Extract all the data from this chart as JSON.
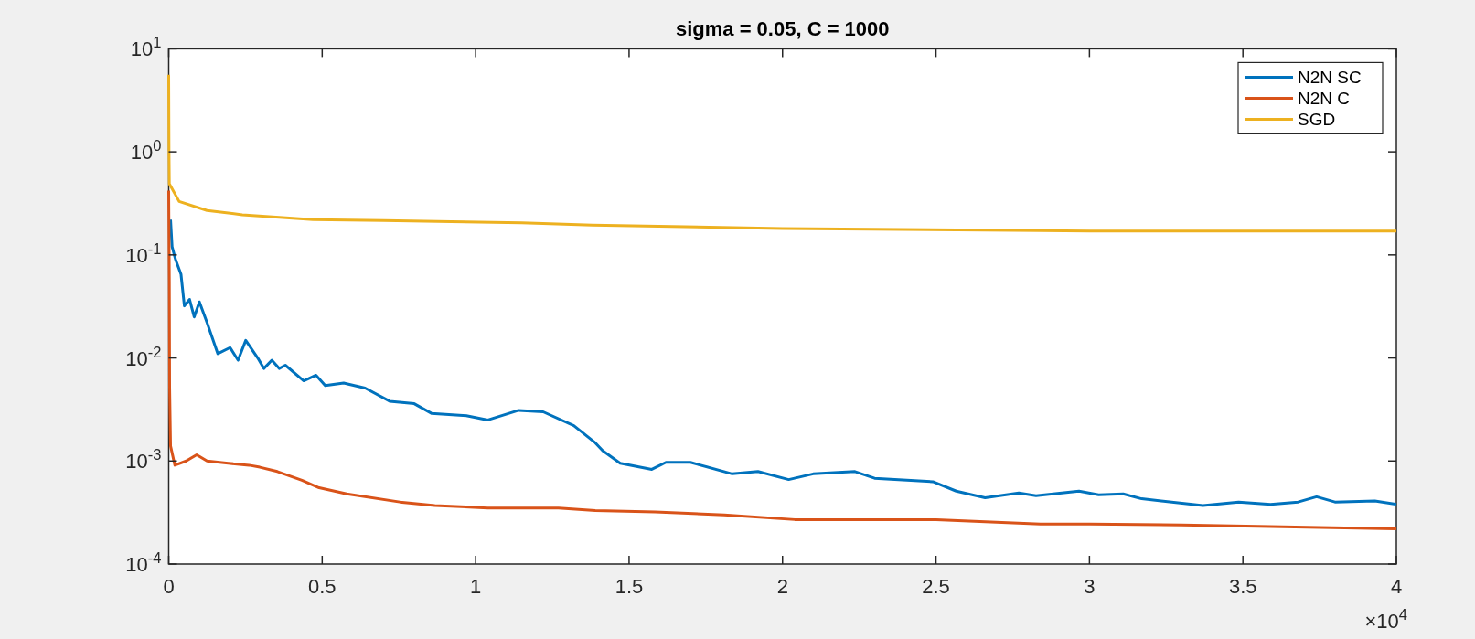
{
  "chart_data": {
    "type": "line",
    "title": "sigma = 0.05, C = 1000",
    "log": "y",
    "grid": false,
    "legend": "top right",
    "xlim": [
      0,
      4
    ],
    "xticks": [
      0,
      0.5,
      1,
      1.5,
      2,
      2.5,
      3,
      3.5,
      4
    ],
    "ylim": [
      0.0001,
      10
    ],
    "yticks": [
      {
        "value": 0.0001,
        "label": "10$^{-4}$"
      },
      {
        "value": 0.001,
        "label": "10$^{-3}$"
      },
      {
        "value": 0.01,
        "label": "10$^{-2}$"
      },
      {
        "value": 0.1,
        "label": "10$^{-1}$"
      },
      {
        "value": 1,
        "label": "10$^{0}$"
      },
      {
        "value": 10,
        "label": "10$^{1}$"
      }
    ],
    "annotations": [
      "×10$^{4}$"
    ],
    "series": [
      {
        "name": "N2N SC",
        "color": "#0072bd",
        "x": [
          0.006,
          0.011,
          0.023,
          0.04,
          0.051,
          0.068,
          0.083,
          0.1,
          0.125,
          0.16,
          0.2,
          0.226,
          0.251,
          0.29,
          0.31,
          0.336,
          0.36,
          0.38,
          0.44,
          0.48,
          0.51,
          0.57,
          0.64,
          0.72,
          0.8,
          0.856,
          0.97,
          1.04,
          1.14,
          1.22,
          1.32,
          1.39,
          1.414,
          1.471,
          1.574,
          1.62,
          1.7,
          1.836,
          1.92,
          2.02,
          2.1,
          2.236,
          2.3,
          2.49,
          2.566,
          2.66,
          2.77,
          2.826,
          2.966,
          3.03,
          3.11,
          3.17,
          3.37,
          3.486,
          3.59,
          3.68,
          3.74,
          3.8,
          3.93,
          4
        ],
        "values": [
          0.22,
          0.12,
          0.089,
          0.065,
          0.032,
          0.037,
          0.025,
          0.035,
          0.022,
          0.011,
          0.0126,
          0.0095,
          0.0148,
          0.01,
          0.0079,
          0.0095,
          0.0079,
          0.0085,
          0.006,
          0.0068,
          0.0054,
          0.0057,
          0.0051,
          0.0038,
          0.0036,
          0.0029,
          0.00275,
          0.0025,
          0.0031,
          0.003,
          0.0022,
          0.0015,
          0.00126,
          0.00095,
          0.00083,
          0.00097,
          0.00097,
          0.00075,
          0.00079,
          0.00066,
          0.00075,
          0.00079,
          0.00068,
          0.00063,
          0.00051,
          0.00044,
          0.00049,
          0.00046,
          0.00051,
          0.00047,
          0.00048,
          0.00043,
          0.00037,
          0.0004,
          0.00038,
          0.0004,
          0.00045,
          0.0004,
          0.00041,
          0.00038
        ]
      },
      {
        "name": "N2N C",
        "color": "#d95319",
        "x": [
          0,
          0.002,
          0.003,
          0.006,
          0.02,
          0.057,
          0.091,
          0.125,
          0.194,
          0.262,
          0.297,
          0.354,
          0.434,
          0.49,
          0.58,
          0.753,
          0.867,
          1.04,
          1.27,
          1.39,
          1.585,
          1.81,
          2.04,
          2.5,
          2.84,
          3,
          3.3,
          3.55,
          3.75,
          4
        ],
        "values": [
          0.42,
          0.055,
          0.0052,
          0.0014,
          0.00091,
          0.001,
          0.00115,
          0.001,
          0.00095,
          0.00091,
          0.00087,
          0.00079,
          0.00065,
          0.00055,
          0.00048,
          0.0004,
          0.00037,
          0.00035,
          0.00035,
          0.00033,
          0.00032,
          0.0003,
          0.00027,
          0.00027,
          0.000245,
          0.000245,
          0.00024,
          0.000232,
          0.000226,
          0.00022
        ]
      },
      {
        "name": "SGD",
        "color": "#edb120",
        "x": [
          0,
          0.001,
          0.002,
          0.034,
          0.125,
          0.24,
          0.47,
          0.7,
          0.92,
          1.15,
          1.38,
          2,
          2.84,
          3,
          4
        ],
        "values": [
          5.6,
          1,
          0.49,
          0.33,
          0.27,
          0.245,
          0.22,
          0.215,
          0.21,
          0.205,
          0.195,
          0.18,
          0.172,
          0.17,
          0.17
        ]
      }
    ]
  }
}
